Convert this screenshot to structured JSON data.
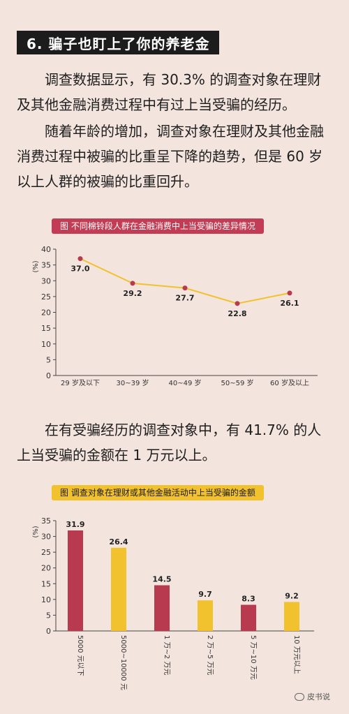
{
  "section_title": "6. 骗子也盯上了你的养老金",
  "paragraphs": {
    "p1": "调查数据显示，有 30.3% 的调查对象在理财及其他金融消费过程中有过上当受骗的经历。",
    "p2": "随着年龄的增加，调查对象在理财及其他金融消费过程中被骗的比重呈下降的趋势，但是 60 岁以上人群的被骗的比重回升。",
    "p3": "在有受骗经历的调查对象中，有 41.7% 的人上当受骗的金额在 1 万元以上。"
  },
  "watermark": "皮书说",
  "chart_data": [
    {
      "type": "line",
      "title": "图  不同棉铃段人群在金融消费中上当受骗的差异情况",
      "ylabel": "(%)",
      "ylim": [
        0,
        40
      ],
      "yticks": [
        0,
        5,
        10,
        15,
        20,
        25,
        30,
        35,
        40
      ],
      "categories": [
        "29 岁及以下",
        "30~39 岁",
        "40~49 岁",
        "50~59 岁",
        "60 岁及以上"
      ],
      "values": [
        37.0,
        29.2,
        27.7,
        22.8,
        26.1
      ],
      "data_labels": [
        "37.0",
        "29.2",
        "27.7",
        "22.8",
        "26.1"
      ],
      "grid": false,
      "line_color": "#f2c12e",
      "marker_color": "#b83a4e"
    },
    {
      "type": "bar",
      "title": "图  调查对象在理财或其他金融活动中上当受骗的金额",
      "ylabel": "(%)",
      "ylim": [
        0,
        35
      ],
      "yticks": [
        0,
        5,
        10,
        15,
        20,
        25,
        30,
        35
      ],
      "categories": [
        "5000 元以下",
        "5000~10000 元",
        "1 万~2 万元",
        "2 万~5 万元",
        "5 万~10 万元",
        "10 万元以上"
      ],
      "values": [
        31.9,
        26.4,
        14.5,
        9.7,
        8.3,
        9.2
      ],
      "data_labels": [
        "31.9",
        "26.4",
        "14.5",
        "9.7",
        "8.3",
        "9.2"
      ],
      "grid": false,
      "bar_colors": [
        "#b83a4e",
        "#f2c12e",
        "#b83a4e",
        "#f2c12e",
        "#b83a4e",
        "#f2c12e"
      ]
    }
  ]
}
